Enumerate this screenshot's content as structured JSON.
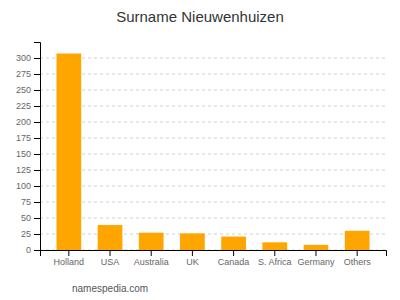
{
  "chart_data": {
    "type": "bar",
    "title": "Surname Nieuwenhuizen",
    "categories": [
      "Holland",
      "USA",
      "Australia",
      "UK",
      "Canada",
      "S. Africa",
      "Germany",
      "Others"
    ],
    "values": [
      307,
      39,
      27,
      26,
      21,
      12,
      8,
      30
    ],
    "color": "#FFA500",
    "ylim": [
      0,
      325
    ],
    "yticks": [
      0,
      25,
      50,
      75,
      100,
      125,
      150,
      175,
      200,
      225,
      250,
      275,
      300
    ],
    "grid": true,
    "annotations": [
      "namespedia.com"
    ]
  }
}
